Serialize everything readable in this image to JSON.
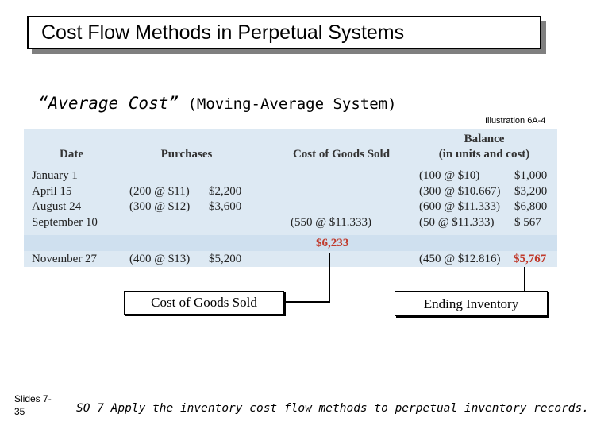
{
  "title": "Cost Flow Methods in Perpetual Systems",
  "subtitle": {
    "part_a": "“Average Cost”",
    "part_b": " (Moving-Average System)"
  },
  "illustration": "Illustration 6A-4",
  "table": {
    "headers": {
      "date": "Date",
      "purchases": "Purchases",
      "cogs": "Cost of Goods Sold",
      "balance_line1": "Balance",
      "balance_line2": "(in units and cost)"
    },
    "rows": [
      {
        "date": "January 1",
        "purchase_units": "",
        "purchase_cost": "",
        "cogs": "",
        "balance_units": "(100 @ $10)",
        "balance_cost": "$1,000"
      },
      {
        "date": "April 15",
        "purchase_units": "(200 @ $11)",
        "purchase_cost": "$2,200",
        "cogs": "",
        "balance_units": "(300 @ $10.667)",
        "balance_cost": "$3,200"
      },
      {
        "date": "August 24",
        "purchase_units": "(300 @ $12)",
        "purchase_cost": "$3,600",
        "cogs": "",
        "balance_units": "(600 @ $11.333)",
        "balance_cost": "$6,800"
      },
      {
        "date": "September 10",
        "purchase_units": "",
        "purchase_cost": "",
        "cogs": "(550 @ $11.333)",
        "balance_units": "(50 @ $11.333)",
        "balance_cost": "$   567"
      },
      {
        "date": "",
        "purchase_units": "",
        "purchase_cost": "",
        "cogs": "$6,233",
        "balance_units": "",
        "balance_cost": ""
      },
      {
        "date": "November 27",
        "purchase_units": "(400 @ $13)",
        "purchase_cost": "$5,200",
        "cogs": "",
        "balance_units": "(450 @ $12.816)",
        "balance_cost": "$5,767"
      }
    ]
  },
  "callouts": {
    "cogs": "Cost of Goods Sold",
    "ending": "Ending Inventory"
  },
  "footer": {
    "slides_line1": "Slides 7-",
    "slides_line2": "35",
    "objective": "SO 7  Apply the inventory cost flow methods to perpetual inventory records."
  },
  "colors": {
    "panel": "#dde9f3",
    "highlight": "#c0392b"
  }
}
